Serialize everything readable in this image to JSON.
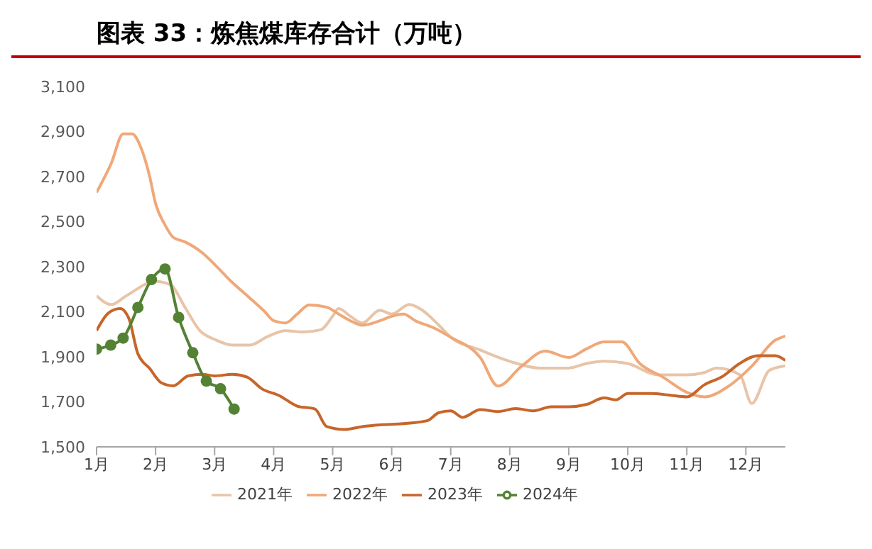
{
  "chart_data": {
    "type": "line",
    "title": "图表 33：炼焦煤库存合计（万吨）",
    "xlim": [
      1,
      12.67
    ],
    "xticks": [
      {
        "value": 1,
        "label": "1月"
      },
      {
        "value": 2,
        "label": "2月"
      },
      {
        "value": 3,
        "label": "3月"
      },
      {
        "value": 4,
        "label": "4月"
      },
      {
        "value": 5,
        "label": "5月"
      },
      {
        "value": 6,
        "label": "6月"
      },
      {
        "value": 7,
        "label": "7月"
      },
      {
        "value": 8,
        "label": "8月"
      },
      {
        "value": 9,
        "label": "9月"
      },
      {
        "value": 10,
        "label": "10月"
      },
      {
        "value": 11,
        "label": "11月"
      },
      {
        "value": 12,
        "label": "12月"
      }
    ],
    "ylim": [
      1500,
      3100
    ],
    "yticks": [
      {
        "value": 1500,
        "label": "1,500"
      },
      {
        "value": 1700,
        "label": "1,700"
      },
      {
        "value": 1900,
        "label": "1,900"
      },
      {
        "value": 2100,
        "label": "2,100"
      },
      {
        "value": 2300,
        "label": "2,300"
      },
      {
        "value": 2500,
        "label": "2,500"
      },
      {
        "value": 2700,
        "label": "2,700"
      },
      {
        "value": 2900,
        "label": "2,900"
      },
      {
        "value": 3100,
        "label": "3,100"
      }
    ],
    "grid": false,
    "legend": "bottom",
    "series": [
      {
        "name": "2021年",
        "color": "#e8c4a8",
        "marker": "none",
        "x": [
          1,
          1.25,
          1.5,
          2,
          2.25,
          2.5,
          2.75,
          3,
          3.3,
          3.6,
          3.9,
          4.2,
          4.5,
          4.8,
          5,
          5.1,
          5.3,
          5.5,
          5.8,
          6,
          6.3,
          6.5,
          6.8,
          7,
          7.5,
          8,
          8.5,
          9,
          9.3,
          9.6,
          10,
          10.5,
          11,
          11.3,
          11.5,
          11.9,
          12.1,
          12.4,
          12.67
        ],
        "values": [
          2171,
          2132,
          2170,
          2235,
          2220,
          2119,
          2016,
          1977,
          1952,
          1952,
          1990,
          2016,
          2010,
          2020,
          2080,
          2114,
          2080,
          2050,
          2106,
          2090,
          2132,
          2110,
          2040,
          1987,
          1930,
          1880,
          1850,
          1850,
          1870,
          1880,
          1870,
          1820,
          1820,
          1830,
          1850,
          1820,
          1693,
          1840,
          1860
        ]
      },
      {
        "name": "2022年",
        "color": "#f0a878",
        "marker": "none",
        "x": [
          1,
          1.25,
          1.45,
          1.6,
          1.75,
          1.9,
          2,
          2.15,
          2.3,
          2.5,
          2.8,
          3,
          3.3,
          3.6,
          3.85,
          4,
          4.2,
          4.4,
          4.6,
          4.9,
          5.1,
          5.3,
          5.5,
          5.8,
          6,
          6.2,
          6.4,
          6.7,
          7,
          7.5,
          7.8,
          8.2,
          8.6,
          9,
          9.3,
          9.6,
          9.9,
          10.2,
          10.6,
          11,
          11.3,
          11.7,
          12.1,
          12.5,
          12.67
        ],
        "values": [
          2630,
          2760,
          2890,
          2890,
          2830,
          2700,
          2580,
          2490,
          2430,
          2410,
          2360,
          2310,
          2230,
          2160,
          2100,
          2060,
          2050,
          2090,
          2130,
          2120,
          2090,
          2060,
          2040,
          2060,
          2080,
          2090,
          2060,
          2030,
          1987,
          1897,
          1770,
          1858,
          1925,
          1897,
          1935,
          1966,
          1966,
          1871,
          1809,
          1742,
          1722,
          1768,
          1858,
          1974,
          1992
        ]
      },
      {
        "name": "2023年",
        "color": "#c8652a",
        "marker": "none",
        "x": [
          1,
          1.2,
          1.4,
          1.55,
          1.7,
          1.9,
          2.1,
          2.3,
          2.55,
          2.8,
          3,
          3.3,
          3.55,
          3.8,
          4.1,
          4.4,
          4.7,
          4.9,
          5.2,
          5.5,
          5.8,
          6.2,
          6.6,
          6.8,
          7,
          7.2,
          7.5,
          7.8,
          8.1,
          8.4,
          8.7,
          9,
          9.3,
          9.6,
          9.8,
          10,
          10.4,
          10.7,
          11,
          11.3,
          11.6,
          11.9,
          12.2,
          12.5,
          12.67
        ],
        "values": [
          2016,
          2094,
          2114,
          2068,
          1913,
          1848,
          1784,
          1771,
          1815,
          1822,
          1815,
          1822,
          1810,
          1758,
          1727,
          1681,
          1668,
          1590,
          1577,
          1590,
          1598,
          1603,
          1616,
          1652,
          1660,
          1631,
          1665,
          1657,
          1670,
          1660,
          1678,
          1678,
          1688,
          1717,
          1709,
          1737,
          1737,
          1730,
          1722,
          1776,
          1812,
          1871,
          1905,
          1905,
          1884
        ]
      },
      {
        "name": "2024年",
        "color": "#548235",
        "marker": "circle",
        "x": [
          1,
          1.24,
          1.45,
          1.7,
          1.93,
          2.16,
          2.39,
          2.63,
          2.86,
          3.1,
          3.33
        ],
        "values": [
          1934,
          1952,
          1983,
          2119,
          2243,
          2290,
          2075,
          1918,
          1792,
          1758,
          1668
        ]
      }
    ]
  }
}
